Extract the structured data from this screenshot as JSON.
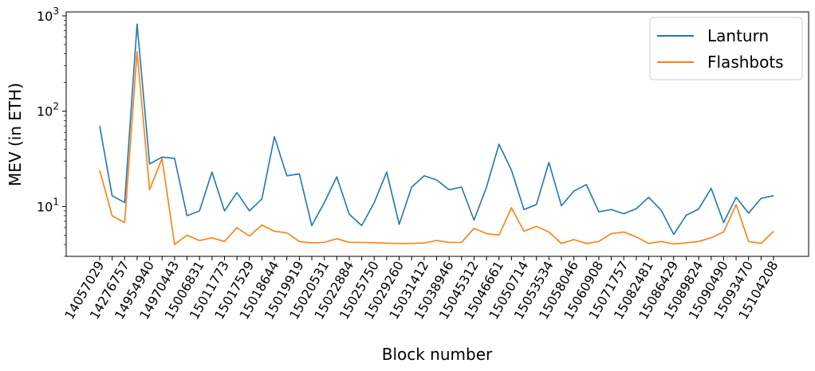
{
  "chart_data": {
    "type": "line",
    "title": "",
    "xlabel": "Block number",
    "ylabel": "MEV (in ETH)",
    "yscale": "log",
    "ylim": [
      3,
      1100
    ],
    "yticks": [
      {
        "value": 10,
        "base": "10",
        "exp": "1"
      },
      {
        "value": 100,
        "base": "10",
        "exp": "2"
      },
      {
        "value": 1000,
        "base": "10",
        "exp": "3"
      }
    ],
    "tick_labels": [
      "14057029",
      "14276757",
      "14954940",
      "14970443",
      "15006831",
      "15011773",
      "15017529",
      "15018644",
      "15019919",
      "15020531",
      "15022884",
      "15025750",
      "15029260",
      "15031412",
      "15038946",
      "15045312",
      "15046661",
      "15050714",
      "15053534",
      "15058046",
      "15060908",
      "15071757",
      "15082481",
      "15086429",
      "15089824",
      "15090490",
      "15093470",
      "15104208"
    ],
    "legend_position": "top-right",
    "grid": false,
    "series": [
      {
        "name": "Lanturn",
        "color": "#1f77b4",
        "values": [
          70,
          13,
          11,
          820,
          28,
          33,
          32,
          8,
          9,
          23,
          9,
          14,
          9,
          12,
          54,
          21,
          22,
          6.3,
          11,
          20.5,
          8.3,
          6.3,
          11,
          23,
          6.5,
          16,
          21,
          19,
          15,
          16,
          7.2,
          16,
          45,
          24,
          9.3,
          10.5,
          29,
          10.2,
          14.5,
          17,
          8.8,
          9.3,
          8.4,
          9.5,
          12.5,
          9.1,
          5.1,
          8.1,
          9.4,
          15.5,
          6.8,
          12.5,
          8.5,
          12.2,
          13
        ]
      },
      {
        "name": "Flashbots",
        "color": "#ff7f0e",
        "values": [
          24,
          8,
          6.8,
          420,
          15,
          32,
          4,
          5,
          4.4,
          4.7,
          4.3,
          6,
          4.9,
          6.4,
          5.5,
          5.3,
          4.3,
          4.15,
          4.2,
          4.6,
          4.2,
          4.2,
          4.18,
          4.14,
          4.08,
          4.1,
          4.15,
          4.4,
          4.2,
          4.2,
          5.9,
          5.2,
          5,
          9.7,
          5.5,
          6.2,
          5.4,
          4.1,
          4.5,
          4.1,
          4.3,
          5.2,
          5.4,
          4.8,
          4.1,
          4.3,
          4.05,
          4.15,
          4.3,
          4.7,
          5.4,
          10.5,
          4.3,
          4.1,
          5.5
        ]
      }
    ]
  }
}
